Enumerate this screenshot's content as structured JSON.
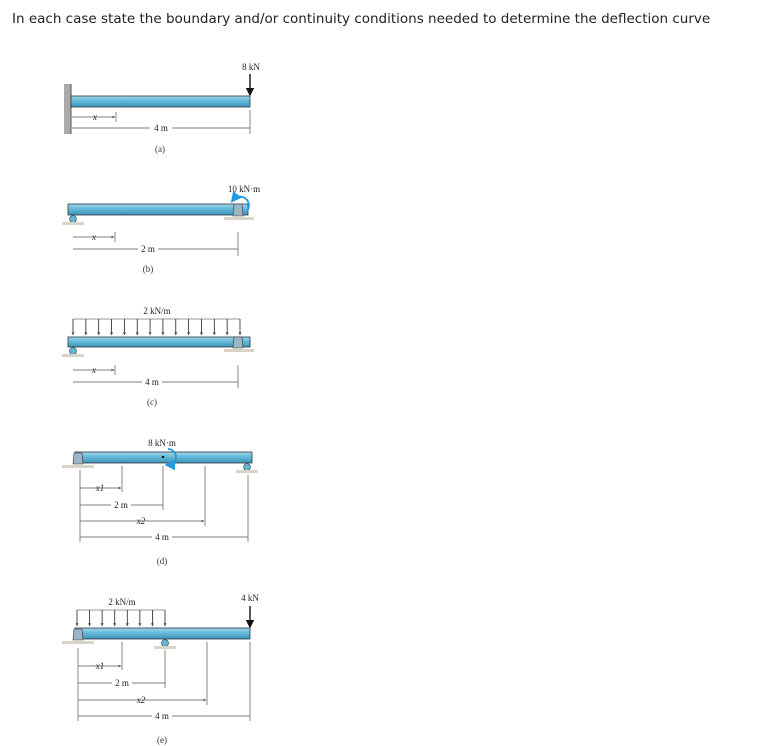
{
  "question": "In each case state the boundary and/or continuity conditions needed to determine the deflection curve",
  "colors": {
    "beam": "#5fb6d6",
    "moment_arrow": "#1f9be0",
    "support": "#9bb7c4",
    "ground": "#d8d4c6"
  },
  "figures": [
    {
      "id": "a",
      "caption": "(a)",
      "load": "8 kN",
      "dims": [
        "x",
        "4 m"
      ]
    },
    {
      "id": "b",
      "caption": "(b)",
      "load": "10 kN·m",
      "dims": [
        "x",
        "2 m"
      ]
    },
    {
      "id": "c",
      "caption": "(c)",
      "load": "2 kN/m",
      "dims": [
        "x",
        "4 m"
      ]
    },
    {
      "id": "d",
      "caption": "(d)",
      "load": "8 kN·m",
      "dims": [
        "x1",
        "2 m",
        "x2",
        "4 m"
      ]
    },
    {
      "id": "e",
      "caption": "(e)",
      "load": "2 kN/m",
      "load2": "4 kN",
      "dims": [
        "x1",
        "2 m",
        "x2",
        "4 m"
      ]
    }
  ]
}
